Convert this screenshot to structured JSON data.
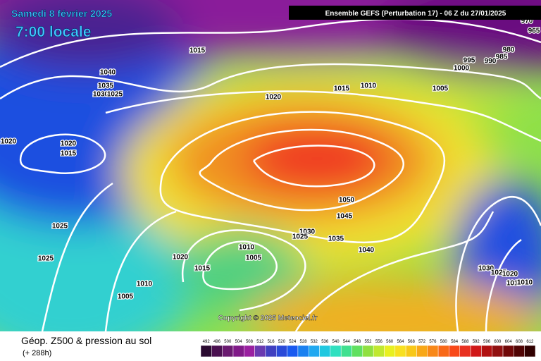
{
  "header": {
    "date": "Samedi 8 février 2025",
    "time": "7:00 locale",
    "model": "Ensemble GEFS  (Perturbation 17)  -  06 Z du 27/01/2025"
  },
  "copyright": "Copyright © 2025 Meteociel.fr",
  "isobar_labels": [
    "1015",
    "1040",
    "1035",
    "1030",
    "1025",
    "1020",
    "1015",
    "1010",
    "1005",
    "995",
    "990",
    "985",
    "980",
    "1000",
    "970",
    "965",
    "1020",
    "1020",
    "1015",
    "1025",
    "1025",
    "1050",
    "1045",
    "1030",
    "1025",
    "1035",
    "1040",
    "1010",
    "1005",
    "1020",
    "1015",
    "1010",
    "1005",
    "1030",
    "1025",
    "1020",
    "1015",
    "1010"
  ],
  "footer": {
    "title": "Géop. Z500 & pression au sol",
    "lead": "(+ 288h)"
  },
  "legend": {
    "items": [
      {
        "value": 492,
        "color": "#2a0a30"
      },
      {
        "value": 496,
        "color": "#4a1050"
      },
      {
        "value": 500,
        "color": "#6a1a70"
      },
      {
        "value": 504,
        "color": "#801a88"
      },
      {
        "value": 508,
        "color": "#9a20a0"
      },
      {
        "value": 512,
        "color": "#6a3ab0"
      },
      {
        "value": 516,
        "color": "#4040c0"
      },
      {
        "value": 520,
        "color": "#2a4ad8"
      },
      {
        "value": 524,
        "color": "#1a5af0"
      },
      {
        "value": 528,
        "color": "#1a80f0"
      },
      {
        "value": 532,
        "color": "#20a8f0"
      },
      {
        "value": 536,
        "color": "#20c8e0"
      },
      {
        "value": 540,
        "color": "#30e0c0"
      },
      {
        "value": 544,
        "color": "#40e090"
      },
      {
        "value": 548,
        "color": "#60e060"
      },
      {
        "value": 552,
        "color": "#90e040"
      },
      {
        "value": 556,
        "color": "#c0e830"
      },
      {
        "value": 560,
        "color": "#e8f020"
      },
      {
        "value": 564,
        "color": "#f8e020"
      },
      {
        "value": 568,
        "color": "#f8c818"
      },
      {
        "value": 572,
        "color": "#f8a818"
      },
      {
        "value": 576,
        "color": "#f88818"
      },
      {
        "value": 580,
        "color": "#f86818"
      },
      {
        "value": 584,
        "color": "#f84818"
      },
      {
        "value": 588,
        "color": "#e83020"
      },
      {
        "value": 592,
        "color": "#d01818"
      },
      {
        "value": 596,
        "color": "#b01010"
      },
      {
        "value": 600,
        "color": "#901010"
      },
      {
        "value": 604,
        "color": "#700808"
      },
      {
        "value": 608,
        "color": "#500404"
      },
      {
        "value": 612,
        "color": "#300000"
      }
    ]
  }
}
